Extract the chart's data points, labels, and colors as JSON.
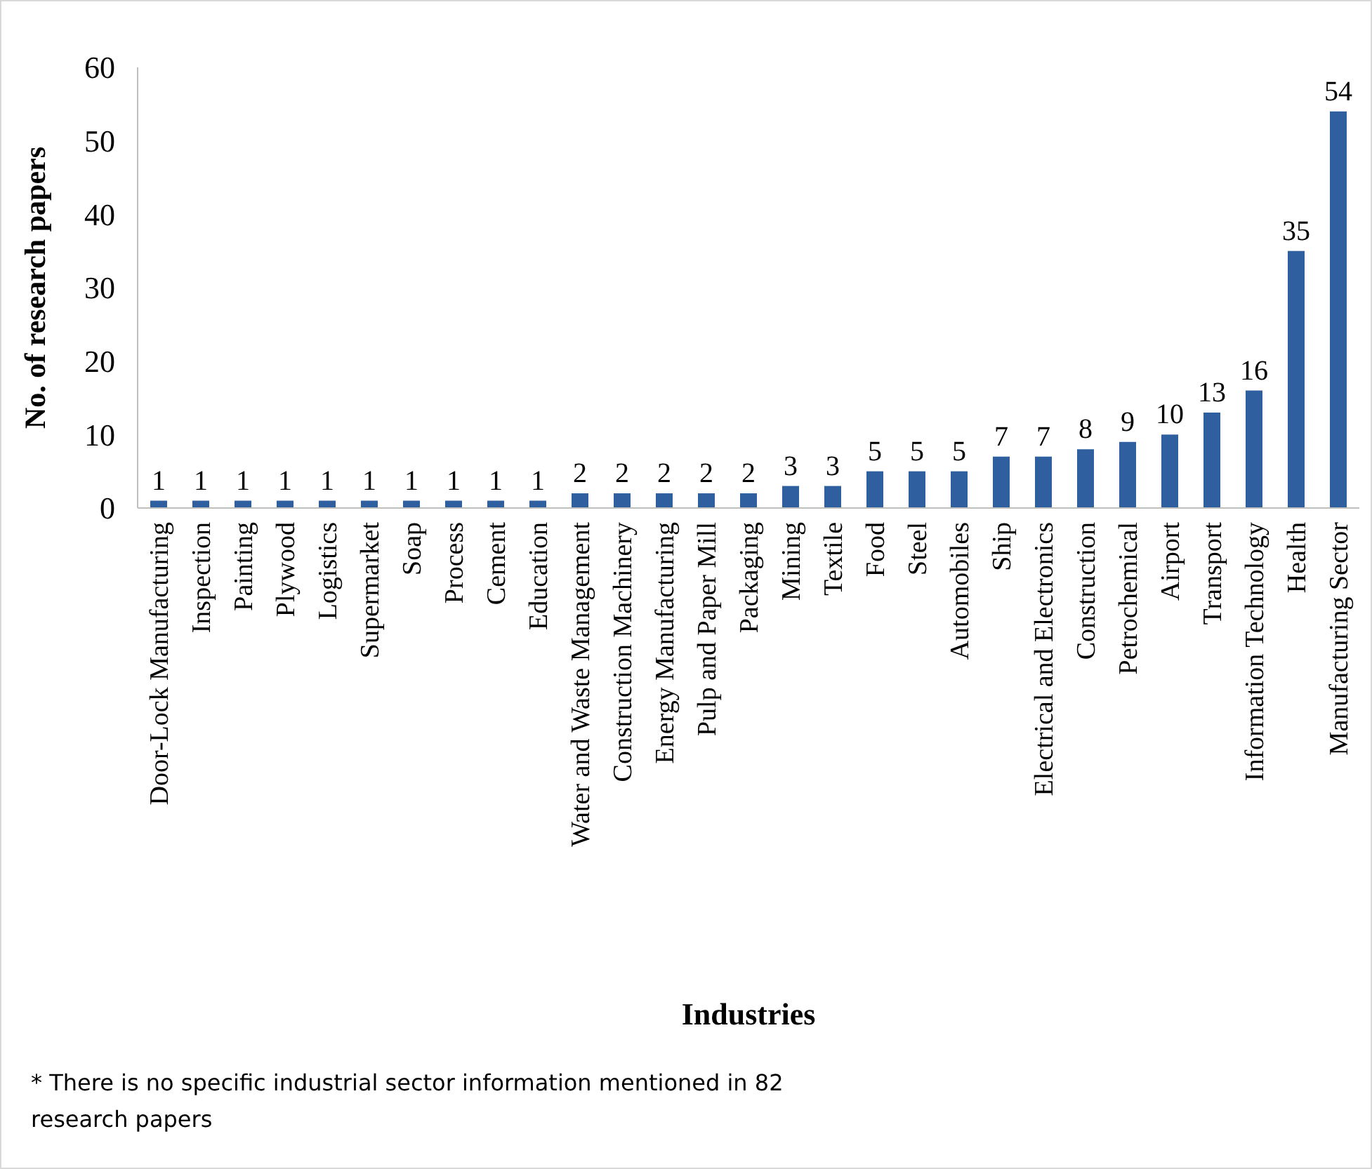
{
  "chart_data": {
    "type": "bar",
    "xlabel": "Industries",
    "ylabel": "No. of research papers",
    "categories": [
      "Door-Lock Manufacturing",
      "Inspection",
      "Painting",
      "Plywood",
      "Logistics",
      "Supermarket",
      "Soap",
      "Process",
      "Cement",
      "Education",
      "Water and Waste Management",
      "Construction Machinery",
      "Energy Manufacturing",
      "Pulp and Paper Mill",
      "Packaging",
      "Mining",
      "Textile",
      "Food",
      "Steel",
      "Automobiles",
      "Ship",
      "Electrical and Electronics",
      "Construction",
      "Petrochemical",
      "Airport",
      "Transport",
      "Information Technology",
      "Health",
      "Manufacturing Sector"
    ],
    "values": [
      1,
      1,
      1,
      1,
      1,
      1,
      1,
      1,
      1,
      1,
      2,
      2,
      2,
      2,
      2,
      3,
      3,
      5,
      5,
      5,
      7,
      7,
      8,
      9,
      10,
      13,
      16,
      35,
      54
    ],
    "color": "#2f5f9f",
    "ylim": [
      0,
      60
    ],
    "yticks": [
      0,
      10,
      20,
      30,
      40,
      50,
      60
    ],
    "grid": false,
    "data_labels": true,
    "annotations": [
      "* There is no specific industrial sector information mentioned in 82 research papers"
    ]
  }
}
